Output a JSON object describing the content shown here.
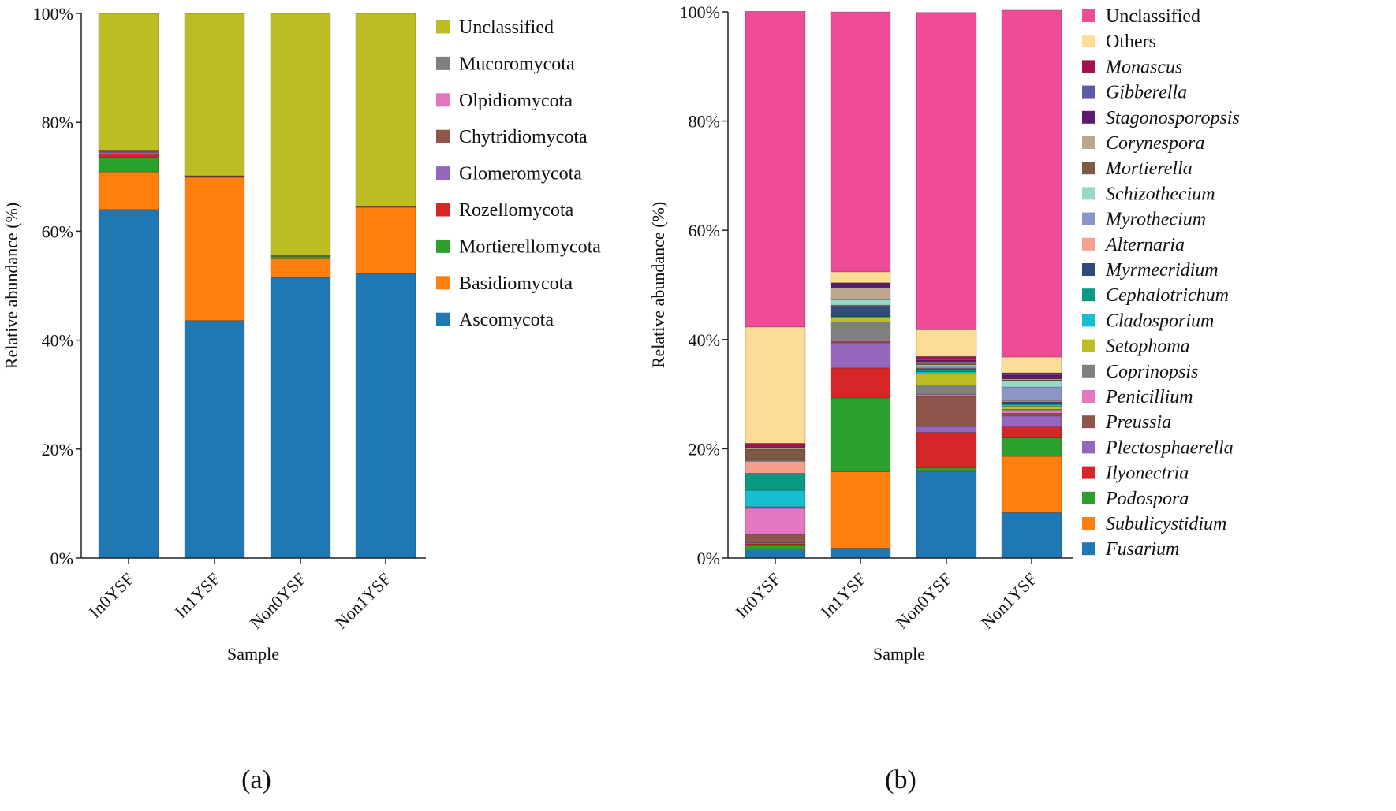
{
  "chart_data": [
    {
      "type": "bar",
      "stacked": true,
      "panel_label": "(a)",
      "xlabel": "Sample",
      "ylabel": "Relative abundance (%)",
      "ylim": [
        0,
        100
      ],
      "yticks": [
        "0%",
        "20%",
        "40%",
        "60%",
        "80%",
        "100%"
      ],
      "categories": [
        "In0YSF",
        "In1YSF",
        "Non0YSF",
        "Non1YSF"
      ],
      "series": [
        {
          "name": "Ascomycota",
          "color": "#1f77b4",
          "values": [
            64.0,
            43.6,
            51.5,
            52.2
          ]
        },
        {
          "name": "Basidiomycota",
          "color": "#ff7f0e",
          "values": [
            6.9,
            26.3,
            3.6,
            12.2
          ]
        },
        {
          "name": "Mortierellomycota",
          "color": "#2ca02c",
          "values": [
            2.7,
            0.0,
            0.3,
            0.0
          ]
        },
        {
          "name": "Rozellomycota",
          "color": "#d62728",
          "values": [
            0.6,
            0.1,
            0.0,
            0.0
          ]
        },
        {
          "name": "Glomeromycota",
          "color": "#9467bd",
          "values": [
            0.3,
            0.1,
            0.0,
            0.0
          ]
        },
        {
          "name": "Chytridiomycota",
          "color": "#8c564b",
          "values": [
            0.2,
            0.1,
            0.1,
            0.1
          ]
        },
        {
          "name": "Olpidiomycota",
          "color": "#e377c2",
          "values": [
            0.1,
            0.0,
            0.0,
            0.0
          ]
        },
        {
          "name": "Mucoromycota",
          "color": "#7f7f7f",
          "values": [
            0.1,
            0.0,
            0.0,
            0.0
          ]
        },
        {
          "name": "Unclassified",
          "color": "#bcbd22",
          "values": [
            25.1,
            29.8,
            44.5,
            35.5
          ]
        }
      ]
    },
    {
      "type": "bar",
      "stacked": true,
      "panel_label": "(b)",
      "xlabel": "Sample",
      "ylabel": "Relative abundance (%)",
      "ylim": [
        0,
        100
      ],
      "yticks": [
        "0%",
        "20%",
        "40%",
        "60%",
        "80%",
        "100%"
      ],
      "categories": [
        "In0YSF",
        "In1YSF",
        "Non0YSF",
        "Non1YSF"
      ],
      "series": [
        {
          "name": "Fusarium",
          "color": "#1f77b4",
          "italic": true,
          "values": [
            1.5,
            1.8,
            15.8,
            8.3
          ]
        },
        {
          "name": "Subulicystidium",
          "color": "#ff7f0e",
          "italic": true,
          "values": [
            0.2,
            14.0,
            0.2,
            10.3
          ]
        },
        {
          "name": "Podospora",
          "color": "#2ca02c",
          "italic": true,
          "values": [
            0.6,
            13.5,
            0.5,
            3.4
          ]
        },
        {
          "name": "Ilyonectria",
          "color": "#d62728",
          "italic": true,
          "values": [
            0.3,
            5.5,
            6.5,
            2.0
          ]
        },
        {
          "name": "Plectosphaerella",
          "color": "#9467bd",
          "italic": true,
          "values": [
            0.2,
            4.6,
            1.1,
            2.0
          ]
        },
        {
          "name": "Preussia",
          "color": "#8c564b",
          "italic": true,
          "values": [
            1.5,
            0.3,
            5.5,
            0.5
          ]
        },
        {
          "name": "Penicillium",
          "color": "#e377c2",
          "italic": true,
          "values": [
            4.8,
            0.2,
            0.3,
            0.4
          ]
        },
        {
          "name": "Coprinopsis",
          "color": "#7f7f7f",
          "italic": true,
          "values": [
            0.2,
            3.3,
            1.8,
            0.3
          ]
        },
        {
          "name": "Setophoma",
          "color": "#bcbd22",
          "italic": true,
          "values": [
            0.1,
            0.9,
            2.0,
            0.6
          ]
        },
        {
          "name": "Cladosporium",
          "color": "#17becf",
          "italic": true,
          "values": [
            3.0,
            0.1,
            0.4,
            0.3
          ]
        },
        {
          "name": "Cephalotrichum",
          "color": "#0a9982",
          "italic": true,
          "values": [
            3.0,
            0.1,
            0.3,
            0.2
          ]
        },
        {
          "name": "Myrmecridium",
          "color": "#2f4b7c",
          "italic": true,
          "values": [
            0.1,
            1.8,
            0.3,
            0.3
          ]
        },
        {
          "name": "Alternaria",
          "color": "#f4a08c",
          "italic": true,
          "values": [
            2.2,
            0.1,
            0.2,
            0.2
          ]
        },
        {
          "name": "Myrothecium",
          "color": "#8c96c6",
          "italic": true,
          "values": [
            0.1,
            0.1,
            0.3,
            2.5
          ]
        },
        {
          "name": "Schizothecium",
          "color": "#98d8c8",
          "italic": true,
          "values": [
            0.1,
            1.0,
            0.2,
            1.2
          ]
        },
        {
          "name": "Mortierella",
          "color": "#7d5a44",
          "italic": true,
          "values": [
            2.0,
            0.1,
            0.3,
            0.1
          ]
        },
        {
          "name": "Corynespora",
          "color": "#bca78e",
          "italic": true,
          "values": [
            0.2,
            2.0,
            0.2,
            0.2
          ]
        },
        {
          "name": "Stagonosporopsis",
          "color": "#5a1a6e",
          "italic": true,
          "values": [
            0.1,
            0.8,
            0.3,
            0.7
          ]
        },
        {
          "name": "Gibberella",
          "color": "#5e5aa8",
          "italic": true,
          "values": [
            0.1,
            0.1,
            0.2,
            0.3
          ]
        },
        {
          "name": "Monascus",
          "color": "#a3114f",
          "italic": true,
          "values": [
            0.7,
            0.1,
            0.5,
            0.1
          ]
        },
        {
          "name": "Others",
          "color": "#fddc95",
          "values": [
            21.3,
            2.0,
            4.9,
            2.9
          ]
        },
        {
          "name": "Unclassified",
          "color": "#ee4c97",
          "values": [
            57.8,
            47.6,
            58.1,
            63.5
          ]
        }
      ]
    }
  ]
}
